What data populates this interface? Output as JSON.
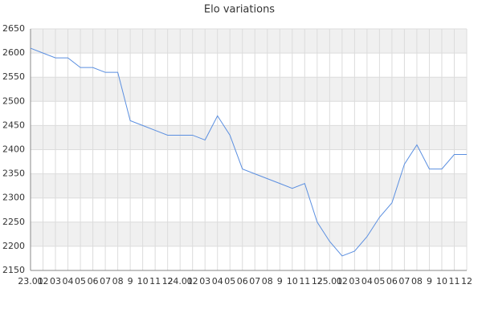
{
  "chart_data": {
    "type": "line",
    "title": "Elo variations",
    "categories": [
      "23.01",
      "02",
      "03",
      "04",
      "05",
      "06",
      "07",
      "08",
      "9",
      "10",
      "11",
      "12",
      "24.01",
      "02",
      "03",
      "04",
      "05",
      "06",
      "07",
      "08",
      "9",
      "10",
      "11",
      "12",
      "25.01",
      "02",
      "03",
      "04",
      "05",
      "06",
      "07",
      "08",
      "9",
      "10",
      "11",
      "12"
    ],
    "series": [
      {
        "name": "Elo",
        "color": "#5b8fe0",
        "values": [
          2610,
          2600,
          2590,
          2590,
          2570,
          2570,
          2560,
          2560,
          2460,
          2450,
          2440,
          2430,
          2430,
          2430,
          2420,
          2470,
          2430,
          2360,
          2350,
          2340,
          2330,
          2320,
          2330,
          2250,
          2210,
          2180,
          2190,
          2220,
          2260,
          2290,
          2370,
          2410,
          2360,
          2360,
          2390,
          2390
        ]
      }
    ],
    "ylim": [
      2150,
      2650
    ],
    "yticks": [
      2150,
      2200,
      2250,
      2300,
      2350,
      2400,
      2450,
      2500,
      2550,
      2600,
      2650
    ],
    "grid": true
  }
}
